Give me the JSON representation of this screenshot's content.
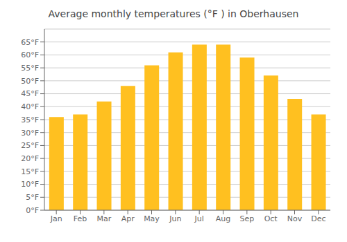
{
  "chart_data": {
    "type": "bar",
    "title": "Average monthly temperatures (°F ) in Oberhausen",
    "categories": [
      "Jan",
      "Feb",
      "Mar",
      "Apr",
      "May",
      "Jun",
      "Jul",
      "Aug",
      "Sep",
      "Oct",
      "Nov",
      "Dec"
    ],
    "values": [
      36,
      37,
      42,
      48,
      56,
      61,
      64,
      64,
      59,
      52,
      43,
      37
    ],
    "color": "#FFC020",
    "ylim": [
      0,
      70
    ],
    "yticks": [
      {
        "value": 0,
        "label": "0°F"
      },
      {
        "value": 5,
        "label": "5°F"
      },
      {
        "value": 10,
        "label": "10°F"
      },
      {
        "value": 15,
        "label": "15°F"
      },
      {
        "value": 20,
        "label": "20°F"
      },
      {
        "value": 25,
        "label": "25°F"
      },
      {
        "value": 30,
        "label": "30°F"
      },
      {
        "value": 35,
        "label": "35°F"
      },
      {
        "value": 40,
        "label": "40°F"
      },
      {
        "value": 45,
        "label": "45°F"
      },
      {
        "value": 50,
        "label": "50°F"
      },
      {
        "value": 55,
        "label": "55°F"
      },
      {
        "value": 60,
        "label": "60°F"
      },
      {
        "value": 65,
        "label": "65°F"
      }
    ],
    "grid": true
  }
}
